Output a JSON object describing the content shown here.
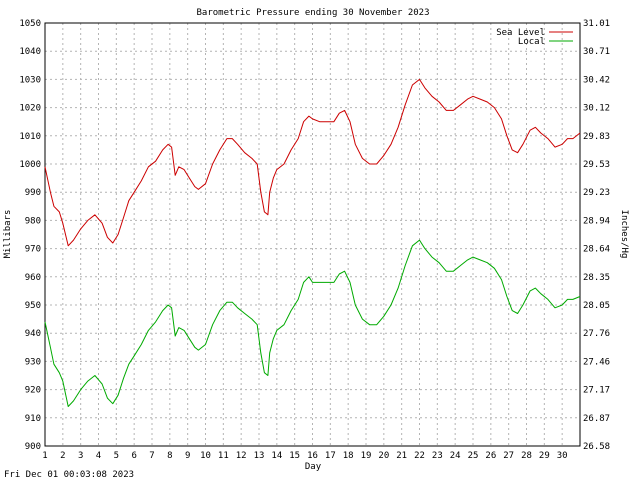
{
  "chart_data": {
    "type": "line",
    "title": "Barometric Pressure ending 30 November 2023",
    "xlabel": "Day",
    "ylabel": "Millibars",
    "y2label": "Inches/Hg",
    "xlim": [
      1,
      31
    ],
    "ylim": [
      900,
      1050
    ],
    "x_ticks": [
      "1",
      "2",
      "3",
      "4",
      "5",
      "6",
      "7",
      "8",
      "9",
      "10",
      "11",
      "12",
      "13",
      "14",
      "15",
      "16",
      "17",
      "18",
      "19",
      "20",
      "21",
      "22",
      "23",
      "24",
      "25",
      "26",
      "27",
      "28",
      "29",
      "30"
    ],
    "y_ticks": [
      "1050",
      "1040",
      "1030",
      "1020",
      "1010",
      "1000",
      "990",
      "980",
      "970",
      "960",
      "950",
      "940",
      "930",
      "920",
      "910",
      "900"
    ],
    "y2_ticks": [
      "31.01",
      "30.71",
      "30.42",
      "30.12",
      "29.83",
      "29.53",
      "29.23",
      "28.94",
      "28.64",
      "28.35",
      "28.05",
      "27.76",
      "27.46",
      "27.17",
      "26.87",
      "26.58"
    ],
    "grid": true,
    "legend_position": "top-right",
    "series": [
      {
        "name": "Sea Level",
        "color": "#cc0000",
        "points": [
          [
            1.0,
            999
          ],
          [
            1.3,
            990
          ],
          [
            1.5,
            985
          ],
          [
            1.8,
            983
          ],
          [
            2.0,
            979
          ],
          [
            2.3,
            971
          ],
          [
            2.6,
            973
          ],
          [
            3.0,
            977
          ],
          [
            3.4,
            980
          ],
          [
            3.8,
            982
          ],
          [
            4.2,
            979
          ],
          [
            4.5,
            974
          ],
          [
            4.8,
            972
          ],
          [
            5.1,
            975
          ],
          [
            5.4,
            981
          ],
          [
            5.7,
            987
          ],
          [
            6.0,
            990
          ],
          [
            6.4,
            994
          ],
          [
            6.8,
            999
          ],
          [
            7.2,
            1001
          ],
          [
            7.6,
            1005
          ],
          [
            7.9,
            1007
          ],
          [
            8.1,
            1006
          ],
          [
            8.3,
            996
          ],
          [
            8.5,
            999
          ],
          [
            8.8,
            998
          ],
          [
            9.1,
            995
          ],
          [
            9.4,
            992
          ],
          [
            9.6,
            991
          ],
          [
            10.0,
            993
          ],
          [
            10.4,
            1000
          ],
          [
            10.8,
            1005
          ],
          [
            11.2,
            1009
          ],
          [
            11.5,
            1009
          ],
          [
            11.8,
            1007
          ],
          [
            12.2,
            1004
          ],
          [
            12.6,
            1002
          ],
          [
            12.9,
            1000
          ],
          [
            13.1,
            990
          ],
          [
            13.3,
            983
          ],
          [
            13.5,
            982
          ],
          [
            13.6,
            990
          ],
          [
            13.8,
            995
          ],
          [
            14.0,
            998
          ],
          [
            14.4,
            1000
          ],
          [
            14.8,
            1005
          ],
          [
            15.2,
            1009
          ],
          [
            15.5,
            1015
          ],
          [
            15.8,
            1017
          ],
          [
            16.0,
            1016
          ],
          [
            16.4,
            1015
          ],
          [
            16.8,
            1015
          ],
          [
            17.2,
            1015
          ],
          [
            17.5,
            1018
          ],
          [
            17.8,
            1019
          ],
          [
            18.1,
            1015
          ],
          [
            18.4,
            1007
          ],
          [
            18.8,
            1002
          ],
          [
            19.2,
            1000
          ],
          [
            19.6,
            1000
          ],
          [
            20.0,
            1003
          ],
          [
            20.4,
            1007
          ],
          [
            20.8,
            1013
          ],
          [
            21.2,
            1021
          ],
          [
            21.6,
            1028
          ],
          [
            22.0,
            1030
          ],
          [
            22.3,
            1027
          ],
          [
            22.7,
            1024
          ],
          [
            23.1,
            1022
          ],
          [
            23.5,
            1019
          ],
          [
            23.9,
            1019
          ],
          [
            24.3,
            1021
          ],
          [
            24.7,
            1023
          ],
          [
            25.0,
            1024
          ],
          [
            25.4,
            1023
          ],
          [
            25.8,
            1022
          ],
          [
            26.2,
            1020
          ],
          [
            26.6,
            1016
          ],
          [
            26.9,
            1010
          ],
          [
            27.2,
            1005
          ],
          [
            27.5,
            1004
          ],
          [
            27.8,
            1007
          ],
          [
            28.2,
            1012
          ],
          [
            28.5,
            1013
          ],
          [
            28.8,
            1011
          ],
          [
            29.2,
            1009
          ],
          [
            29.6,
            1006
          ],
          [
            30.0,
            1007
          ],
          [
            30.3,
            1009
          ],
          [
            30.6,
            1009
          ],
          [
            31.0,
            1011
          ]
        ]
      },
      {
        "name": "Local",
        "color": "#00aa00",
        "points": [
          [
            1.0,
            944
          ],
          [
            1.3,
            935
          ],
          [
            1.5,
            929
          ],
          [
            1.8,
            926
          ],
          [
            2.0,
            923
          ],
          [
            2.3,
            914
          ],
          [
            2.6,
            916
          ],
          [
            3.0,
            920
          ],
          [
            3.4,
            923
          ],
          [
            3.8,
            925
          ],
          [
            4.2,
            922
          ],
          [
            4.5,
            917
          ],
          [
            4.8,
            915
          ],
          [
            5.1,
            918
          ],
          [
            5.4,
            924
          ],
          [
            5.7,
            929
          ],
          [
            6.0,
            932
          ],
          [
            6.4,
            936
          ],
          [
            6.8,
            941
          ],
          [
            7.2,
            944
          ],
          [
            7.6,
            948
          ],
          [
            7.9,
            950
          ],
          [
            8.1,
            949
          ],
          [
            8.3,
            939
          ],
          [
            8.5,
            942
          ],
          [
            8.8,
            941
          ],
          [
            9.1,
            938
          ],
          [
            9.4,
            935
          ],
          [
            9.6,
            934
          ],
          [
            10.0,
            936
          ],
          [
            10.4,
            943
          ],
          [
            10.8,
            948
          ],
          [
            11.2,
            951
          ],
          [
            11.5,
            951
          ],
          [
            11.8,
            949
          ],
          [
            12.2,
            947
          ],
          [
            12.6,
            945
          ],
          [
            12.9,
            943
          ],
          [
            13.1,
            933
          ],
          [
            13.3,
            926
          ],
          [
            13.5,
            925
          ],
          [
            13.6,
            933
          ],
          [
            13.8,
            938
          ],
          [
            14.0,
            941
          ],
          [
            14.4,
            943
          ],
          [
            14.8,
            948
          ],
          [
            15.2,
            952
          ],
          [
            15.5,
            958
          ],
          [
            15.8,
            960
          ],
          [
            16.0,
            958
          ],
          [
            16.4,
            958
          ],
          [
            16.8,
            958
          ],
          [
            17.2,
            958
          ],
          [
            17.5,
            961
          ],
          [
            17.8,
            962
          ],
          [
            18.1,
            958
          ],
          [
            18.4,
            950
          ],
          [
            18.8,
            945
          ],
          [
            19.2,
            943
          ],
          [
            19.6,
            943
          ],
          [
            20.0,
            946
          ],
          [
            20.4,
            950
          ],
          [
            20.8,
            956
          ],
          [
            21.2,
            964
          ],
          [
            21.6,
            971
          ],
          [
            22.0,
            973
          ],
          [
            22.3,
            970
          ],
          [
            22.7,
            967
          ],
          [
            23.1,
            965
          ],
          [
            23.5,
            962
          ],
          [
            23.9,
            962
          ],
          [
            24.3,
            964
          ],
          [
            24.7,
            966
          ],
          [
            25.0,
            967
          ],
          [
            25.4,
            966
          ],
          [
            25.8,
            965
          ],
          [
            26.2,
            963
          ],
          [
            26.6,
            959
          ],
          [
            26.9,
            953
          ],
          [
            27.2,
            948
          ],
          [
            27.5,
            947
          ],
          [
            27.8,
            950
          ],
          [
            28.2,
            955
          ],
          [
            28.5,
            956
          ],
          [
            28.8,
            954
          ],
          [
            29.2,
            952
          ],
          [
            29.6,
            949
          ],
          [
            30.0,
            950
          ],
          [
            30.3,
            952
          ],
          [
            30.6,
            952
          ],
          [
            31.0,
            953
          ]
        ]
      }
    ]
  },
  "footer": {
    "timestamp": "Fri Dec 01 00:03:08 2023"
  }
}
